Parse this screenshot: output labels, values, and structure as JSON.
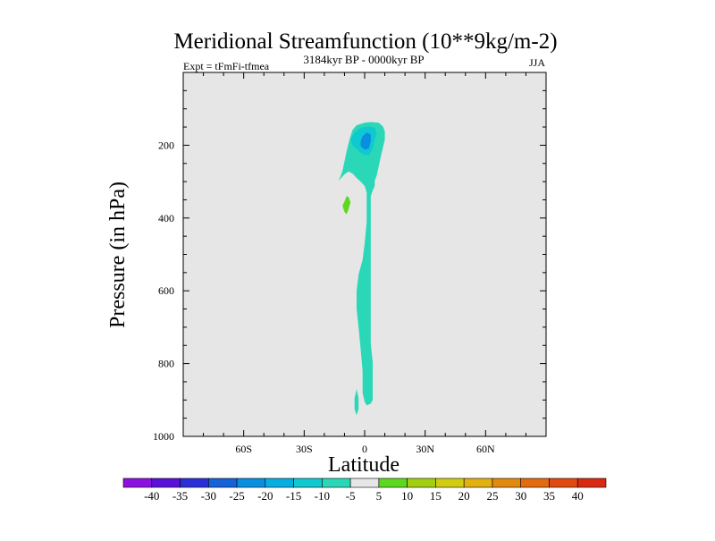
{
  "chart_data": {
    "type": "filled-contour",
    "title": "Meridional Streamfunction (10**9kg/m-2)",
    "subtitle": "3184kyr BP - 0000kyr BP",
    "left_label": "Expt = tFmFi-tfmea",
    "right_label": "JJA",
    "xlabel": "Latitude",
    "ylabel": "Pressure (in hPa)",
    "xlim": [
      -90,
      90
    ],
    "ylim": [
      1000,
      0
    ],
    "x_ticks": [
      {
        "value": -60,
        "label": "60S"
      },
      {
        "value": -30,
        "label": "30S"
      },
      {
        "value": 0,
        "label": "0"
      },
      {
        "value": 30,
        "label": "30N"
      },
      {
        "value": 60,
        "label": "60N"
      }
    ],
    "y_ticks": [
      {
        "value": 200,
        "label": "200"
      },
      {
        "value": 400,
        "label": "400"
      },
      {
        "value": 600,
        "label": "600"
      },
      {
        "value": 800,
        "label": "800"
      },
      {
        "value": 1000,
        "label": "1000"
      }
    ],
    "background_color": "#e6e6e6",
    "colorbar": {
      "labels": [
        "-40",
        "-35",
        "-30",
        "-25",
        "-20",
        "-15",
        "-10",
        "-5",
        "5",
        "10",
        "15",
        "20",
        "25",
        "30",
        "35",
        "40"
      ],
      "colors": [
        "#8c10e0",
        "#5a10d8",
        "#2b30d6",
        "#1662d8",
        "#0a8ee0",
        "#08aee0",
        "#10c8d0",
        "#2ad8b8",
        "#e6e6e6",
        "#5cd820",
        "#a2d010",
        "#d2cc10",
        "#e2b010",
        "#e28a10",
        "#e26a10",
        "#e04a10",
        "#d82a10"
      ]
    },
    "regions": [
      {
        "level": "-10 to -5",
        "color": "#2ad8b8",
        "points": [
          [
            -13,
            298
          ],
          [
            -12,
            286
          ],
          [
            -11,
            270
          ],
          [
            -10,
            245
          ],
          [
            -9,
            218
          ],
          [
            -8,
            195
          ],
          [
            -7,
            175
          ],
          [
            -6,
            158
          ],
          [
            -4,
            145
          ],
          [
            0,
            138
          ],
          [
            3,
            136
          ],
          [
            7,
            138
          ],
          [
            9,
            148
          ],
          [
            10,
            162
          ],
          [
            10,
            185
          ],
          [
            9,
            208
          ],
          [
            8,
            232
          ],
          [
            7,
            258
          ],
          [
            6,
            283
          ],
          [
            5,
            298
          ],
          [
            5,
            312
          ],
          [
            4,
            325
          ],
          [
            3,
            340
          ],
          [
            3,
            365
          ],
          [
            3,
            420
          ],
          [
            3,
            500
          ],
          [
            3,
            540
          ],
          [
            3,
            580
          ],
          [
            3,
            640
          ],
          [
            3,
            690
          ],
          [
            3,
            745
          ],
          [
            4,
            795
          ],
          [
            4,
            855
          ],
          [
            4,
            900
          ],
          [
            3,
            910
          ],
          [
            1,
            915
          ],
          [
            0,
            905
          ],
          [
            -1,
            880
          ],
          [
            -1,
            820
          ],
          [
            -2,
            760
          ],
          [
            -3,
            700
          ],
          [
            -4,
            650
          ],
          [
            -4,
            600
          ],
          [
            -3,
            555
          ],
          [
            -1,
            515
          ],
          [
            0,
            470
          ],
          [
            1,
            410
          ],
          [
            1,
            360
          ],
          [
            1,
            330
          ],
          [
            0,
            312
          ],
          [
            -2,
            300
          ],
          [
            -4,
            290
          ],
          [
            -6,
            278
          ],
          [
            -8,
            272
          ],
          [
            -10,
            280
          ],
          [
            -12,
            292
          ]
        ]
      },
      {
        "level": "-10 to -5",
        "color": "#2ad8b8",
        "points": [
          [
            -4,
            870
          ],
          [
            -3,
            895
          ],
          [
            -3,
            925
          ],
          [
            -4,
            942
          ],
          [
            -5,
            925
          ],
          [
            -5,
            895
          ]
        ]
      },
      {
        "level": "-15 to -10",
        "color": "#10c8d0",
        "points": [
          [
            -7,
            185
          ],
          [
            -5,
            165
          ],
          [
            -2,
            152
          ],
          [
            2,
            148
          ],
          [
            5,
            152
          ],
          [
            6,
            165
          ],
          [
            5,
            185
          ],
          [
            4,
            210
          ],
          [
            2,
            228
          ],
          [
            -1,
            225
          ],
          [
            -4,
            210
          ],
          [
            -6,
            200
          ]
        ]
      },
      {
        "level": "-20 to -15",
        "color": "#0a8ee0",
        "points": [
          [
            -2,
            190
          ],
          [
            -1,
            175
          ],
          [
            1,
            165
          ],
          [
            3,
            170
          ],
          [
            3,
            190
          ],
          [
            2,
            210
          ],
          [
            0,
            212
          ],
          [
            -2,
            203
          ]
        ]
      },
      {
        "level": "5 to 10",
        "color": "#5cd820",
        "points": [
          [
            -11,
            366
          ],
          [
            -10,
            355
          ],
          [
            -9,
            340
          ],
          [
            -8,
            342
          ],
          [
            -7,
            357
          ],
          [
            -8,
            376
          ],
          [
            -9,
            390
          ],
          [
            -10,
            383
          ]
        ]
      }
    ]
  }
}
